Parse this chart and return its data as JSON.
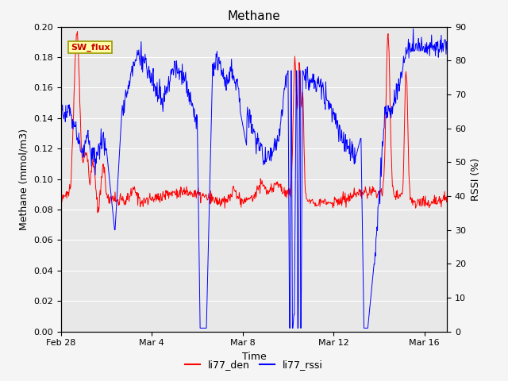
{
  "title": "Methane",
  "ylabel_left": "Methane (mmol/m3)",
  "ylabel_right": "RSSI (%)",
  "xlabel": "Time",
  "ylim_left": [
    0.0,
    0.2
  ],
  "ylim_right": [
    0,
    90
  ],
  "yticks_left": [
    0.0,
    0.02,
    0.04,
    0.06,
    0.08,
    0.1,
    0.12,
    0.14,
    0.16,
    0.18,
    0.2
  ],
  "yticks_right": [
    0,
    10,
    20,
    30,
    40,
    50,
    60,
    70,
    80,
    90
  ],
  "xtick_labels": [
    "Feb 28",
    "Mar 4",
    "Mar 8",
    "Mar 12",
    "Mar 16"
  ],
  "xtick_positions": [
    0,
    4,
    8,
    12,
    16
  ],
  "xlim": [
    0,
    17
  ],
  "legend_labels": [
    "li77_den",
    "li77_rssi"
  ],
  "sw_flux_label": "SW_flux",
  "sw_flux_bg": "#ffffaa",
  "sw_flux_border": "#999900",
  "sw_flux_text_color": "#cc0000",
  "background_color": "#e8e8e8",
  "grid_color": "#ffffff",
  "fig_bg_color": "#f5f5f5",
  "title_fontsize": 11,
  "axis_fontsize": 9,
  "tick_fontsize": 8,
  "legend_fontsize": 9,
  "red_color": "#ff0000",
  "blue_color": "#0000ff",
  "line_width": 0.7
}
